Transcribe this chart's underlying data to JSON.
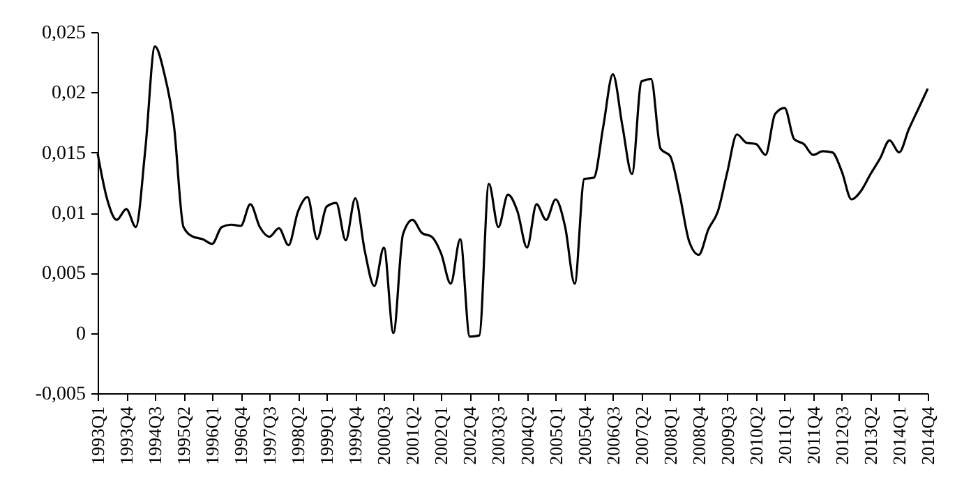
{
  "chart_data": {
    "type": "line",
    "categories": [
      "1993Q1",
      null,
      null,
      "1993Q4",
      null,
      null,
      "1994Q3",
      null,
      null,
      "1995Q2",
      null,
      null,
      "1996Q1",
      null,
      null,
      "1996Q4",
      null,
      null,
      "1997Q3",
      null,
      null,
      "1998Q2",
      null,
      null,
      "1999Q1",
      null,
      null,
      "1999Q4",
      null,
      null,
      "2000Q3",
      null,
      null,
      "2001Q2",
      null,
      null,
      "2002Q1",
      null,
      null,
      "2002Q4",
      null,
      null,
      "2003Q3",
      null,
      null,
      "2004Q2",
      null,
      null,
      "2005Q1",
      null,
      null,
      "2005Q4",
      null,
      null,
      "2006Q3",
      null,
      null,
      "2007Q2",
      null,
      null,
      "2008Q1",
      null,
      null,
      "2008Q4",
      null,
      null,
      "2009Q3",
      null,
      null,
      "2010Q2",
      null,
      null,
      "2011Q1",
      null,
      null,
      "2011Q4",
      null,
      null,
      "2012Q3",
      null,
      null,
      "2013Q2",
      null,
      null,
      "2014Q1",
      null,
      null,
      "2014Q4"
    ],
    "series": [
      {
        "color": "#000000",
        "values": [
          0.0149,
          0.0111,
          0.0094,
          0.0103,
          0.0088,
          0.0153,
          0.0238,
          0.0215,
          0.0172,
          0.0088,
          0.008,
          0.0078,
          0.0074,
          0.0088,
          0.009,
          0.0089,
          0.0107,
          0.0088,
          0.008,
          0.0087,
          0.0073,
          0.0101,
          0.0113,
          0.0078,
          0.0105,
          0.0108,
          0.0077,
          0.0112,
          0.0068,
          0.0039,
          0.0071,
          0.0,
          0.0082,
          0.0094,
          0.0083,
          0.008,
          0.0066,
          0.0041,
          0.0078,
          -0.0003,
          -0.0002,
          0.0124,
          0.0088,
          0.0115,
          0.0101,
          0.0071,
          0.0107,
          0.0094,
          0.0111,
          0.0088,
          0.0041,
          0.0128,
          0.0129,
          0.0172,
          0.0215,
          0.0172,
          0.0132,
          0.0209,
          0.0211,
          0.0153,
          0.0147,
          0.0115,
          0.0076,
          0.0065,
          0.0086,
          0.0101,
          0.0134,
          0.0165,
          0.0158,
          0.0157,
          0.0148,
          0.0182,
          0.0187,
          0.0161,
          0.0157,
          0.0148,
          0.0151,
          0.015,
          0.0134,
          0.0111,
          0.0118,
          0.0132,
          0.0145,
          0.016,
          0.015,
          0.0169,
          0.0186,
          0.0203
        ]
      }
    ],
    "ylim": [
      -0.005,
      0.025
    ],
    "yticks": [
      {
        "value": -0.005,
        "label": "-0,005"
      },
      {
        "value": 0,
        "label": "0"
      },
      {
        "value": 0.005,
        "label": "0,005"
      },
      {
        "value": 0.01,
        "label": "0,01"
      },
      {
        "value": 0.015,
        "label": "0,015"
      },
      {
        "value": 0.02,
        "label": "0,02"
      },
      {
        "value": 0.025,
        "label": "0,025"
      }
    ],
    "grid": false,
    "marker": "none",
    "line_style": "solid"
  }
}
